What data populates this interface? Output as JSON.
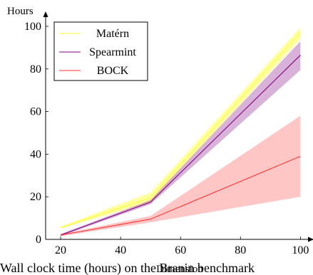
{
  "chart_data": {
    "type": "line",
    "x": [
      20,
      50,
      100
    ],
    "xlabel": "Dimension",
    "ylabel": "Hours",
    "xlim": [
      15,
      103
    ],
    "ylim": [
      0,
      105
    ],
    "xticks": [
      20,
      40,
      60,
      80,
      100
    ],
    "yticks": [
      0,
      20,
      40,
      60,
      80,
      100
    ],
    "grid": false,
    "legend_position": "top-left",
    "series": [
      {
        "name": "Matérn",
        "color": "#ffff33",
        "values": [
          5.5,
          19.5,
          97
        ],
        "lower": [
          5,
          17.5,
          94
        ],
        "upper": [
          6,
          22,
          99.5
        ]
      },
      {
        "name": "Spearmint",
        "color": "#800080",
        "values": [
          2,
          17.5,
          86.5
        ],
        "lower": [
          1.5,
          16.5,
          79.5
        ],
        "upper": [
          2.5,
          18.5,
          93
        ]
      },
      {
        "name": "BOCK",
        "color": "#ff3333",
        "values": [
          2,
          9.5,
          39
        ],
        "lower": [
          1.5,
          8,
          20
        ],
        "upper": [
          2.5,
          11,
          58
        ]
      }
    ]
  },
  "caption_fragment": "Wall clock time (hours) on the Branin benchmark"
}
